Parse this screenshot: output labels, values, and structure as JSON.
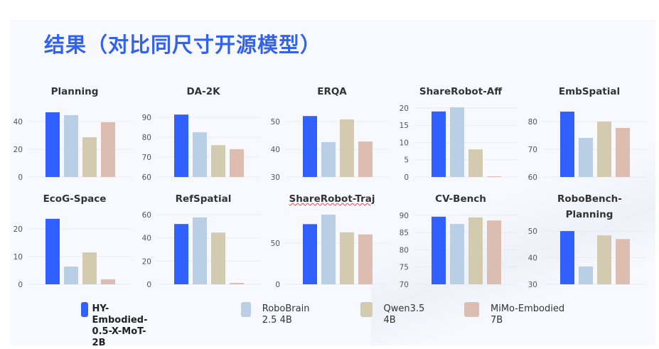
{
  "slide": {
    "title": "结果（对比同尺寸开源模型）"
  },
  "legend": [
    {
      "label": "HY-Embodied-0.5-X-MoT-2B",
      "color": "#3060ff"
    },
    {
      "label": "RoboBrain 2.5 4B",
      "color": "#b9cfe6"
    },
    {
      "label": "Qwen3.5 4B",
      "color": "#d3cbb0"
    },
    {
      "label": "MiMo-Embodied 7B",
      "color": "#dcbdb0"
    }
  ],
  "chart_data": [
    {
      "type": "bar",
      "title": "Planning",
      "ylim": [
        0,
        50.8
      ],
      "ticks": [
        "0",
        "20",
        "40"
      ],
      "tick_values": [
        0,
        20,
        40
      ],
      "values": [
        46.7,
        44.6,
        28.7,
        39.5
      ]
    },
    {
      "type": "bar",
      "title": "DA-2K",
      "ylim": [
        60,
        95.4
      ],
      "ticks": [
        "60",
        "70",
        "80",
        "90"
      ],
      "tick_values": [
        60,
        70,
        80,
        90
      ],
      "values": [
        91.4,
        82.5,
        76.0,
        74.0
      ]
    },
    {
      "type": "bar",
      "title": "ERQA",
      "ylim": [
        30,
        55.4
      ],
      "ticks": [
        "30",
        "40",
        "50"
      ],
      "tick_values": [
        30,
        40,
        50
      ],
      "values": [
        52.0,
        42.6,
        50.8,
        42.8
      ]
    },
    {
      "type": "bar",
      "title": "ShareRobot-Aff",
      "ylim": [
        0,
        20.4
      ],
      "ticks": [
        "0",
        "5",
        "10",
        "15",
        "20"
      ],
      "tick_values": [
        0,
        5,
        10,
        15,
        20
      ],
      "values": [
        19.0,
        20.2,
        8.0,
        0.2
      ]
    },
    {
      "type": "bar",
      "title": "EmbSpatial",
      "ylim": [
        60,
        85.4
      ],
      "ticks": [
        "60",
        "70",
        "80"
      ],
      "tick_values": [
        60,
        70,
        80
      ],
      "values": [
        83.6,
        74.1,
        80.0,
        77.7
      ]
    },
    {
      "type": "bar",
      "title": "EcoG-Space",
      "ylim": [
        0,
        25.6
      ],
      "ticks": [
        "0",
        "10",
        "20"
      ],
      "tick_values": [
        0,
        10,
        20
      ],
      "values": [
        23.6,
        6.4,
        11.5,
        1.8
      ]
    },
    {
      "type": "bar",
      "title": "RefSpatial",
      "ylim": [
        0,
        61.3
      ],
      "ticks": [
        "0",
        "20",
        "40",
        "60"
      ],
      "tick_values": [
        0,
        20,
        40,
        60
      ],
      "values": [
        52.0,
        57.7,
        44.6,
        1.2
      ]
    },
    {
      "type": "bar",
      "title": "ShareRobot-Traj",
      "ylim": [
        0,
        86.2
      ],
      "ticks": [
        "0",
        "50"
      ],
      "tick_values": [
        0,
        50
      ],
      "values": [
        73.0,
        84.5,
        63.0,
        60.5
      ]
    },
    {
      "type": "bar",
      "title": "CV-Bench",
      "ylim": [
        70,
        90.6
      ],
      "ticks": [
        "70",
        "75",
        "80",
        "85",
        "90"
      ],
      "tick_values": [
        70,
        75,
        80,
        85,
        90
      ],
      "values": [
        89.6,
        87.5,
        89.4,
        88.5
      ]
    },
    {
      "type": "bar",
      "title": "RoboBench-Planning",
      "ylim": [
        30,
        56.7
      ],
      "ticks": [
        "30",
        "40",
        "50"
      ],
      "tick_values": [
        30,
        40,
        50
      ],
      "values": [
        50.0,
        36.7,
        48.4,
        47.0
      ]
    }
  ]
}
